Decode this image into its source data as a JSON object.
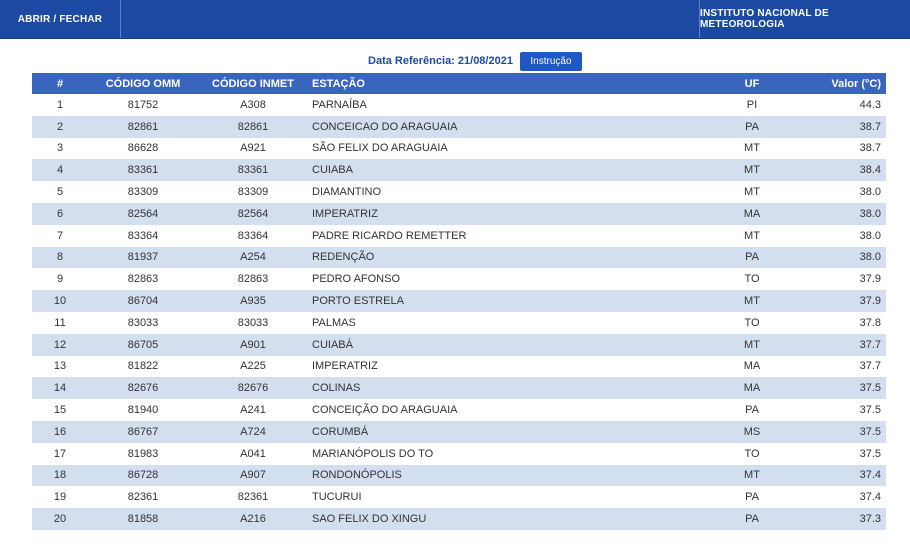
{
  "topbar": {
    "left_label": "ABRIR / FECHAR",
    "right_label": "INSTITUTO NACIONAL DE METEOROLOGIA"
  },
  "reference": {
    "text": "Data Referência: 21/08/2021",
    "button_label": "Instrução"
  },
  "table": {
    "headers": [
      "#",
      "CÓDIGO OMM",
      "CÓDIGO INMET",
      "ESTAÇÃO",
      "UF",
      "Valor (°C)"
    ],
    "rows": [
      [
        "1",
        "81752",
        "A308",
        "PARNAÍBA",
        "PI",
        "44.3"
      ],
      [
        "2",
        "82861",
        "82861",
        "CONCEICAO DO ARAGUAIA",
        "PA",
        "38.7"
      ],
      [
        "3",
        "86628",
        "A921",
        "SÃO FELIX DO ARAGUAIA",
        "MT",
        "38.7"
      ],
      [
        "4",
        "83361",
        "83361",
        "CUIABA",
        "MT",
        "38.4"
      ],
      [
        "5",
        "83309",
        "83309",
        "DIAMANTINO",
        "MT",
        "38.0"
      ],
      [
        "6",
        "82564",
        "82564",
        "IMPERATRIZ",
        "MA",
        "38.0"
      ],
      [
        "7",
        "83364",
        "83364",
        "PADRE RICARDO REMETTER",
        "MT",
        "38.0"
      ],
      [
        "8",
        "81937",
        "A254",
        "REDENÇÃO",
        "PA",
        "38.0"
      ],
      [
        "9",
        "82863",
        "82863",
        "PEDRO AFONSO",
        "TO",
        "37.9"
      ],
      [
        "10",
        "86704",
        "A935",
        "PORTO ESTRELA",
        "MT",
        "37.9"
      ],
      [
        "11",
        "83033",
        "83033",
        "PALMAS",
        "TO",
        "37.8"
      ],
      [
        "12",
        "86705",
        "A901",
        "CUIABÁ",
        "MT",
        "37.7"
      ],
      [
        "13",
        "81822",
        "A225",
        "IMPERATRIZ",
        "MA",
        "37.7"
      ],
      [
        "14",
        "82676",
        "82676",
        "COLINAS",
        "MA",
        "37.5"
      ],
      [
        "15",
        "81940",
        "A241",
        "CONCEIÇÃO DO ARAGUAIA",
        "PA",
        "37.5"
      ],
      [
        "16",
        "86767",
        "A724",
        "CORUMBÁ",
        "MS",
        "37.5"
      ],
      [
        "17",
        "81983",
        "A041",
        "MARIANÓPOLIS DO TO",
        "TO",
        "37.5"
      ],
      [
        "18",
        "86728",
        "A907",
        "RONDONÓPOLIS",
        "MT",
        "37.4"
      ],
      [
        "19",
        "82361",
        "82361",
        "TUCURUI",
        "PA",
        "37.4"
      ],
      [
        "20",
        "81858",
        "A216",
        "SAO FELIX DO XINGU",
        "PA",
        "37.3"
      ]
    ]
  },
  "colors": {
    "header_bar": "#1c4aa3",
    "table_header": "#3a65bf",
    "row_alt": "#d3deef",
    "button": "#1f57c4"
  }
}
